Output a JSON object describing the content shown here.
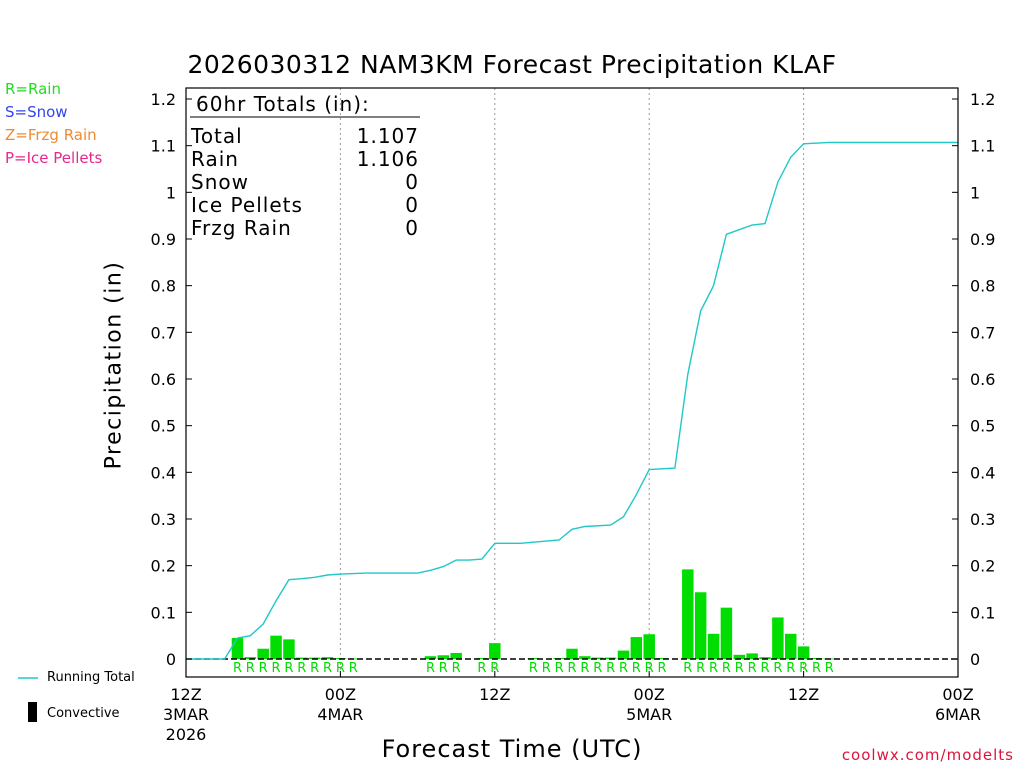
{
  "chart_data": {
    "type": "bar",
    "title": "2026030312 NAM3KM Forecast Precipitation KLAF",
    "xlabel": "Forecast Time (UTC)",
    "ylabel": "Precipitation (in)",
    "ylim": [
      0,
      1.2
    ],
    "xlim_hours": [
      0,
      60
    ],
    "yticks": [
      "0",
      "0.1",
      "0.2",
      "0.3",
      "0.4",
      "0.5",
      "0.6",
      "0.7",
      "0.8",
      "0.9",
      "1",
      "1.1",
      "1.2"
    ],
    "xticks": [
      {
        "hour": 0,
        "label": "12Z",
        "sub1": "3MAR",
        "sub2": "2026"
      },
      {
        "hour": 12,
        "label": "00Z",
        "sub1": "4MAR",
        "sub2": ""
      },
      {
        "hour": 24,
        "label": "12Z",
        "sub1": "",
        "sub2": ""
      },
      {
        "hour": 36,
        "label": "00Z",
        "sub1": "5MAR",
        "sub2": ""
      },
      {
        "hour": 48,
        "label": "12Z",
        "sub1": "",
        "sub2": ""
      },
      {
        "hour": 60,
        "label": "00Z",
        "sub1": "6MAR",
        "sub2": ""
      }
    ],
    "gridlines_hours": [
      12,
      24,
      36,
      48
    ],
    "series": [
      {
        "name": "Running Total",
        "type": "line",
        "color": "#20c8c8",
        "points": [
          [
            0,
            0
          ],
          [
            3,
            0
          ],
          [
            4,
            0.045
          ],
          [
            5,
            0.05
          ],
          [
            6,
            0.075
          ],
          [
            7,
            0.125
          ],
          [
            8,
            0.17
          ],
          [
            9,
            0.172
          ],
          [
            10,
            0.175
          ],
          [
            11,
            0.18
          ],
          [
            12,
            0.182
          ],
          [
            13,
            0.183
          ],
          [
            14,
            0.184
          ],
          [
            18,
            0.184
          ],
          [
            19,
            0.19
          ],
          [
            20,
            0.198
          ],
          [
            21,
            0.212
          ],
          [
            22,
            0.212
          ],
          [
            23,
            0.214
          ],
          [
            24,
            0.248
          ],
          [
            26,
            0.248
          ],
          [
            29,
            0.255
          ],
          [
            30,
            0.278
          ],
          [
            31,
            0.284
          ],
          [
            33,
            0.287
          ],
          [
            34,
            0.305
          ],
          [
            35,
            0.352
          ],
          [
            36,
            0.406
          ],
          [
            38,
            0.409
          ],
          [
            39,
            0.61
          ],
          [
            40,
            0.746
          ],
          [
            41,
            0.8
          ],
          [
            42,
            0.91
          ],
          [
            43,
            0.92
          ],
          [
            44,
            0.93
          ],
          [
            45,
            0.933
          ],
          [
            46,
            1.022
          ],
          [
            47,
            1.075
          ],
          [
            48,
            1.104
          ],
          [
            50,
            1.107
          ],
          [
            60,
            1.107
          ]
        ]
      },
      {
        "name": "Hourly Rain",
        "type": "bar",
        "color": "#00dd00",
        "bars": [
          [
            4,
            0.045
          ],
          [
            5,
            0.004
          ],
          [
            6,
            0.022
          ],
          [
            7,
            0.05
          ],
          [
            8,
            0.042
          ],
          [
            9,
            0.003
          ],
          [
            10,
            0.003
          ],
          [
            11,
            0.004
          ],
          [
            12,
            0.002
          ],
          [
            13,
            0.001
          ],
          [
            19,
            0.006
          ],
          [
            20,
            0.008
          ],
          [
            21,
            0.013
          ],
          [
            23,
            0.002
          ],
          [
            24,
            0.034
          ],
          [
            27,
            0.002
          ],
          [
            29,
            0.002
          ],
          [
            30,
            0.022
          ],
          [
            31,
            0.006
          ],
          [
            32,
            0.003
          ],
          [
            33,
            0.003
          ],
          [
            34,
            0.018
          ],
          [
            35,
            0.047
          ],
          [
            36,
            0.053
          ],
          [
            37,
            0.002
          ],
          [
            39,
            0.192
          ],
          [
            40,
            0.143
          ],
          [
            41,
            0.054
          ],
          [
            42,
            0.11
          ],
          [
            43,
            0.009
          ],
          [
            44,
            0.012
          ],
          [
            45,
            0.004
          ],
          [
            46,
            0.089
          ],
          [
            47,
            0.054
          ],
          [
            48,
            0.027
          ],
          [
            49,
            0.002
          ],
          [
            50,
            0.001
          ]
        ]
      }
    ],
    "precip_type_markers": {
      "letter": "R",
      "hours": [
        4,
        5,
        6,
        7,
        8,
        9,
        10,
        11,
        12,
        13,
        19,
        20,
        21,
        23,
        24,
        27,
        28,
        29,
        30,
        31,
        32,
        33,
        34,
        35,
        36,
        37,
        39,
        40,
        41,
        42,
        43,
        44,
        45,
        46,
        47,
        48,
        49,
        50
      ],
      "color": "#00dd00"
    },
    "totals_box": {
      "header": "60hr Totals (in):",
      "rows": [
        {
          "label": "Total",
          "value": "1.107"
        },
        {
          "label": "Rain",
          "value": "1.106"
        },
        {
          "label": "Snow",
          "value": "0"
        },
        {
          "label": "Ice Pellets",
          "value": "0"
        },
        {
          "label": "Frzg Rain",
          "value": "0"
        }
      ]
    }
  },
  "legend": {
    "rain": {
      "text": "R=Rain",
      "color": "#22dd22"
    },
    "snow": {
      "text": "S=Snow",
      "color": "#3344ee"
    },
    "frzg": {
      "text": "Z=Frzg Rain",
      "color": "#f08a30"
    },
    "ice": {
      "text": "P=Ice Pellets",
      "color": "#e8288c"
    },
    "running_total": "Running Total",
    "convective": "Convective"
  },
  "credit": "coolwx.com/modelts"
}
